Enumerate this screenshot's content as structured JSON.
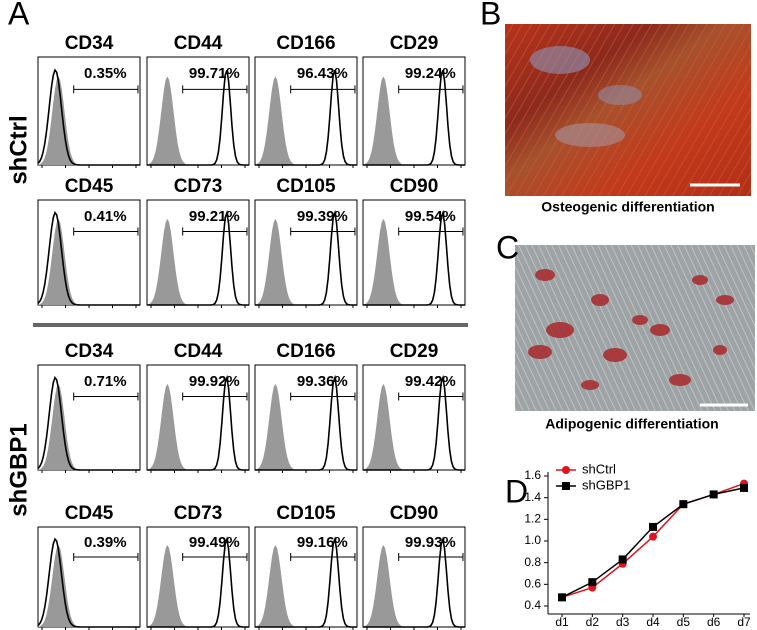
{
  "panel_a": {
    "label": "A",
    "groups": [
      {
        "name": "shCtrl",
        "rows": [
          [
            {
              "marker": "CD34",
              "percent": "0.35%"
            },
            {
              "marker": "CD44",
              "percent": "99.71%"
            },
            {
              "marker": "CD166",
              "percent": "96.43%"
            },
            {
              "marker": "CD29",
              "percent": "99.24%"
            }
          ],
          [
            {
              "marker": "CD45",
              "percent": "0.41%"
            },
            {
              "marker": "CD73",
              "percent": "99.21%"
            },
            {
              "marker": "CD105",
              "percent": "99.39%"
            },
            {
              "marker": "CD90",
              "percent": "99.54%"
            }
          ]
        ]
      },
      {
        "name": "shGBP1",
        "rows": [
          [
            {
              "marker": "CD34",
              "percent": "0.71%"
            },
            {
              "marker": "CD44",
              "percent": "99.92%"
            },
            {
              "marker": "CD166",
              "percent": "99.36%"
            },
            {
              "marker": "CD29",
              "percent": "99.42%"
            }
          ],
          [
            {
              "marker": "CD45",
              "percent": "0.39%"
            },
            {
              "marker": "CD73",
              "percent": "99.49%"
            },
            {
              "marker": "CD105",
              "percent": "99.16%"
            },
            {
              "marker": "CD90",
              "percent": "99.93%"
            }
          ]
        ]
      }
    ]
  },
  "panel_b": {
    "label": "B",
    "caption": "Osteogenic differentiation"
  },
  "panel_c": {
    "label": "C",
    "caption": "Adipogenic differentiation"
  },
  "panel_d": {
    "label": "D"
  },
  "chart_data": {
    "type": "line",
    "categories": [
      "d1",
      "d2",
      "d3",
      "d4",
      "d5",
      "d6",
      "d7"
    ],
    "series": [
      {
        "name": "shCtrl",
        "color": "#e0141e",
        "marker": "circle",
        "values": [
          0.48,
          0.57,
          0.79,
          1.04,
          1.34,
          1.43,
          1.53
        ]
      },
      {
        "name": "shGBP1",
        "color": "#000000",
        "marker": "square",
        "values": [
          0.48,
          0.62,
          0.83,
          1.13,
          1.34,
          1.43,
          1.49
        ]
      }
    ],
    "ylim": [
      0.4,
      1.6
    ],
    "yticks": [
      0.4,
      0.6,
      0.8,
      {
        "value": 1,
        "label": "1.0"
      },
      1.2,
      1.4,
      1.6
    ],
    "legend": "upper left"
  }
}
